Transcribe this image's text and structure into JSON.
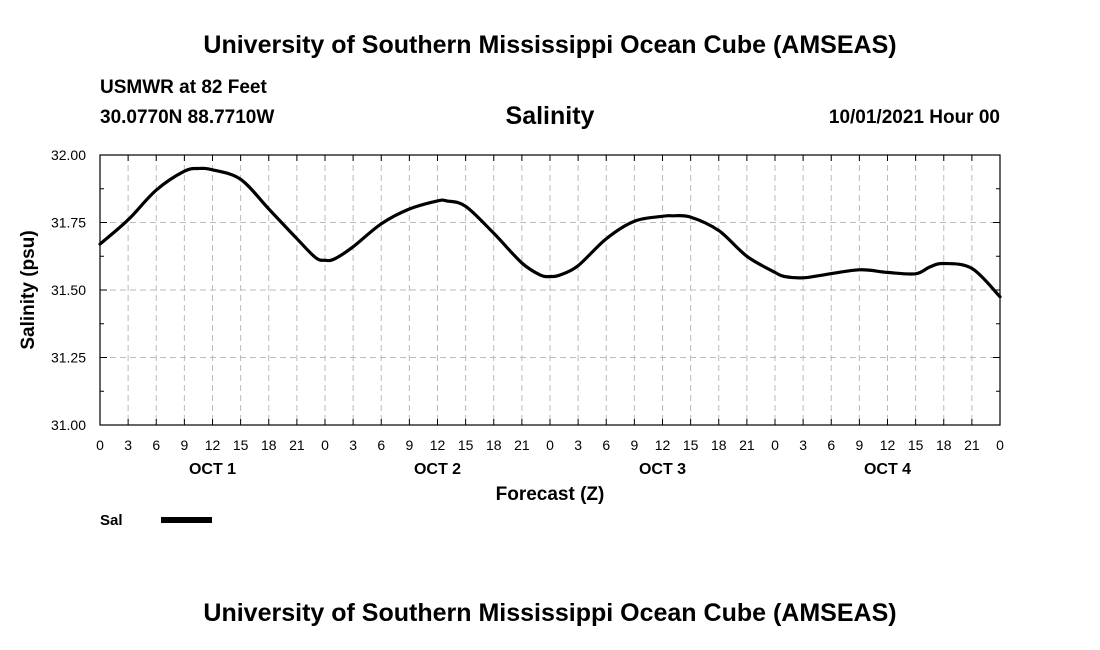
{
  "header": {
    "title": "University of Southern Mississippi Ocean Cube (AMSEAS)",
    "station": "USMWR at 82 Feet",
    "coords": "30.0770N  88.7710W",
    "variable": "Salinity",
    "datetime": "10/01/2021 Hour 00"
  },
  "footer": {
    "title": "University of Southern Mississippi Ocean Cube (AMSEAS)"
  },
  "colors": {
    "line": "#000000",
    "grid": "#bbbbbb",
    "axis": "#000000"
  },
  "chart_data": {
    "type": "line",
    "title": "Salinity",
    "xlabel": "Forecast (Z)",
    "ylabel": "Salinity (psu)",
    "ylim": [
      31.0,
      32.0
    ],
    "yticks": [
      31.0,
      31.25,
      31.5,
      31.75,
      32.0
    ],
    "ytick_labels": [
      "31.00",
      "31.25",
      "31.50",
      "31.75",
      "32.00"
    ],
    "xlim": [
      0,
      96
    ],
    "xticks": [
      0,
      3,
      6,
      9,
      12,
      15,
      18,
      21,
      24,
      27,
      30,
      33,
      36,
      39,
      42,
      45,
      48,
      51,
      54,
      57,
      60,
      63,
      66,
      69,
      72,
      75,
      78,
      81,
      84,
      87,
      90,
      93,
      96
    ],
    "xtick_labels": [
      "0",
      "3",
      "6",
      "9",
      "12",
      "15",
      "18",
      "21",
      "0",
      "3",
      "6",
      "9",
      "12",
      "15",
      "18",
      "21",
      "0",
      "3",
      "6",
      "9",
      "12",
      "15",
      "18",
      "21",
      "0",
      "3",
      "6",
      "9",
      "12",
      "15",
      "18",
      "21",
      "0"
    ],
    "days": [
      {
        "label": "OCT 1",
        "hour": 12
      },
      {
        "label": "OCT 2",
        "hour": 36
      },
      {
        "label": "OCT 3",
        "hour": 60
      },
      {
        "label": "OCT 4",
        "hour": 84
      }
    ],
    "grid": true,
    "legend": {
      "position": "bottom-left",
      "label": "Sal"
    },
    "series": [
      {
        "name": "Sal",
        "x": [
          0,
          3,
          6,
          9,
          10.5,
          12,
          15,
          18,
          21,
          23,
          24,
          25,
          27,
          30,
          33,
          36,
          37,
          39,
          42,
          45,
          47,
          48,
          49,
          51,
          54,
          57,
          60,
          61,
          63,
          66,
          69,
          72,
          73,
          75,
          77,
          81,
          84,
          87,
          88.5,
          90,
          93,
          96
        ],
        "values": [
          31.67,
          31.76,
          31.87,
          31.94,
          31.95,
          31.945,
          31.91,
          31.8,
          31.69,
          31.62,
          31.61,
          31.615,
          31.66,
          31.745,
          31.8,
          31.83,
          31.83,
          31.81,
          31.71,
          31.6,
          31.555,
          31.55,
          31.555,
          31.59,
          31.69,
          31.755,
          31.773,
          31.775,
          31.77,
          31.72,
          31.625,
          31.565,
          31.55,
          31.545,
          31.555,
          31.575,
          31.565,
          31.56,
          31.585,
          31.598,
          31.58,
          31.475
        ]
      }
    ]
  }
}
